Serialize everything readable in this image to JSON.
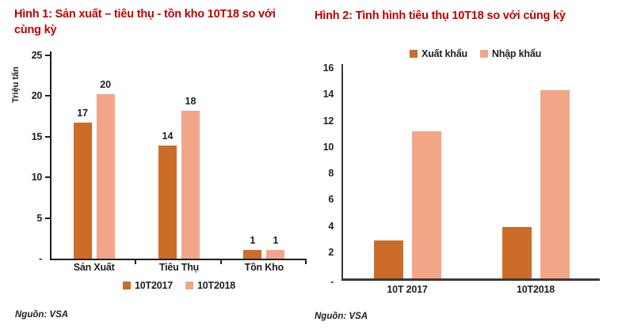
{
  "colors": {
    "background": "#ffffff",
    "title": "#C00000",
    "series_2017": "#CC6C29",
    "series_2018": "#F2A687",
    "axis": "#1f1f1f",
    "axis_gray": "#3a3a3a",
    "text": "#1f1f1f"
  },
  "chart_data": [
    {
      "type": "bar",
      "title": "Hình 1: Sản xuất – tiêu thụ - tồn kho 10T18 so với cùng kỳ",
      "ylabel": "Triệu tấn",
      "categories": [
        "Sản Xuất",
        "Tiêu Thụ",
        "Tồn Kho"
      ],
      "series": [
        {
          "name": "10T2017",
          "color": "#CC6C29",
          "values": [
            16.7,
            13.9,
            1.1
          ],
          "labels": [
            "17",
            "14",
            "1"
          ]
        },
        {
          "name": "10T2018",
          "color": "#F2A687",
          "values": [
            20.2,
            18.2,
            1.1
          ],
          "labels": [
            "20",
            "18",
            "1"
          ]
        }
      ],
      "ylim": [
        0,
        25
      ],
      "yticks": [
        25,
        20,
        15,
        10,
        5
      ],
      "zero_label": "-",
      "grid": false,
      "legend_position": "bottom",
      "source": "Nguồn: VSA"
    },
    {
      "type": "bar",
      "title": "Hình 2: Tình hình tiêu thụ 10T18 so với cùng kỳ",
      "ylabel": "",
      "categories": [
        "10T 2017",
        "10T2018"
      ],
      "series": [
        {
          "name": "Xuất khẩu",
          "color": "#CC6C29",
          "values": [
            2.9,
            3.9
          ]
        },
        {
          "name": "Nhập khẩu",
          "color": "#F2A687",
          "values": [
            11.2,
            14.3
          ]
        }
      ],
      "ylim": [
        0,
        16
      ],
      "yticks": [
        16,
        14,
        12,
        10,
        8,
        6,
        4,
        2
      ],
      "zero_label": "-",
      "grid": false,
      "legend_position": "top",
      "source": "Nguồn: VSA"
    }
  ]
}
